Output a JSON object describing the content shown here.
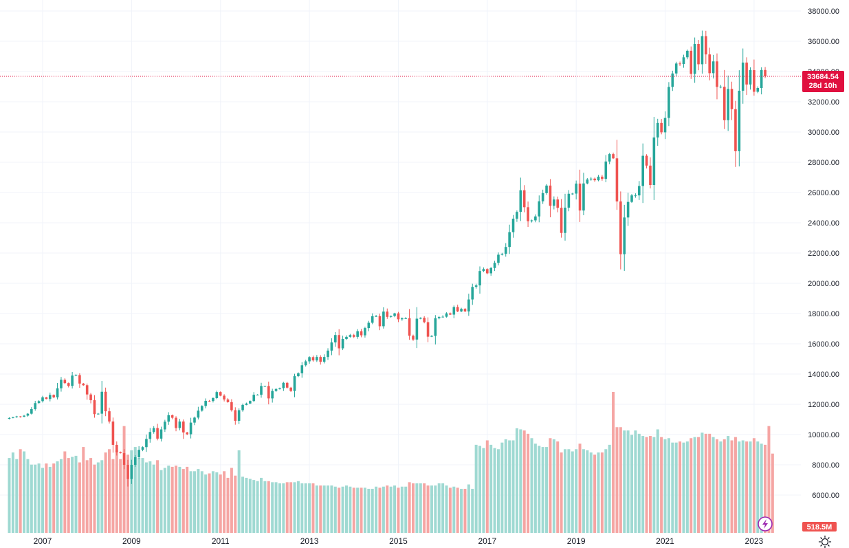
{
  "chart_data": {
    "type": "candlestick",
    "interval": "monthly",
    "ylim": [
      4000,
      38500
    ],
    "y_ticks": [
      {
        "value": 6000,
        "label": "6000.00"
      },
      {
        "value": 8000,
        "label": "8000.00"
      },
      {
        "value": 10000,
        "label": "10000.00"
      },
      {
        "value": 12000,
        "label": "12000.00"
      },
      {
        "value": 14000,
        "label": "14000.00"
      },
      {
        "value": 16000,
        "label": "16000.00"
      },
      {
        "value": 18000,
        "label": "18000.00"
      },
      {
        "value": 20000,
        "label": "20000.00"
      },
      {
        "value": 22000,
        "label": "22000.00"
      },
      {
        "value": 24000,
        "label": "24000.00"
      },
      {
        "value": 26000,
        "label": "26000.00"
      },
      {
        "value": 28000,
        "label": "28000.00"
      },
      {
        "value": 30000,
        "label": "30000.00"
      },
      {
        "value": 32000,
        "label": "32000.00"
      },
      {
        "value": 34000,
        "label": "34000.00"
      },
      {
        "value": 36000,
        "label": "36000.00"
      },
      {
        "value": 38000,
        "label": "38000.00"
      }
    ],
    "x_ticks": [
      {
        "label": "2007",
        "year": 2007
      },
      {
        "label": "2009",
        "year": 2009
      },
      {
        "label": "2011",
        "year": 2011
      },
      {
        "label": "2013",
        "year": 2013
      },
      {
        "label": "2015",
        "year": 2015
      },
      {
        "label": "2017",
        "year": 2017
      },
      {
        "label": "2019",
        "year": 2019
      },
      {
        "label": "2021",
        "year": 2021
      },
      {
        "label": "2023",
        "year": 2023
      }
    ],
    "start": {
      "year": 2006,
      "month": 4
    },
    "closes": [
      11100,
      11150,
      11200,
      11180,
      11250,
      11380,
      11680,
      12080,
      12210,
      12460,
      12350,
      12620,
      12460,
      13060,
      13620,
      13400,
      13220,
      13900,
      13930,
      13370,
      13260,
      12650,
      12270,
      11350,
      11380,
      12830,
      11540,
      10860,
      9320,
      8830,
      8770,
      8000,
      7060,
      8000,
      8500,
      8990,
      9170,
      9710,
      10170,
      10430,
      9730,
      10340,
      10850,
      11280,
      11110,
      10430,
      10860,
      10140,
      10020,
      10790,
      11120,
      11580,
      11890,
      12230,
      12220,
      12410,
      12810,
      12570,
      12320,
      12140,
      11610,
      10910,
      11610,
      11960,
      12050,
      12220,
      12630,
      12630,
      13210,
      13210,
      12390,
      12880,
      13010,
      13070,
      13420,
      13100,
      12880,
      13860,
      14050,
      14580,
      14840,
      15120,
      14900,
      15130,
      14810,
      15130,
      15550,
      16090,
      16580,
      15700,
      16320,
      16460,
      16580,
      16460,
      16830,
      16560,
      17040,
      17390,
      17820,
      17830,
      17160,
      18130,
      17780,
      17840,
      18010,
      17620,
      17690,
      17690,
      16530,
      16280,
      17660,
      17720,
      17430,
      16470,
      16520,
      17690,
      17770,
      17790,
      18010,
      17930,
      18430,
      18140,
      18310,
      18140,
      18930,
      19760,
      19860,
      20810,
      20940,
      20660,
      21010,
      21350,
      21890,
      21950,
      22400,
      23380,
      24270,
      24720,
      26150,
      25030,
      24100,
      24160,
      24420,
      25420,
      25960,
      26460,
      25120,
      25540,
      24990,
      23330,
      25000,
      25920,
      25930,
      26590,
      24810,
      26600,
      26860,
      26920,
      26810,
      27050,
      26900,
      28050,
      28540,
      28260,
      25410,
      21920,
      24350,
      25380,
      25810,
      25810,
      26430,
      28430,
      27780,
      26500,
      29640,
      30600,
      29980,
      30930,
      32980,
      33870,
      34530,
      34500,
      34940,
      35370,
      33840,
      35820,
      34480,
      36340,
      35130,
      33890,
      34670,
      32980,
      32990,
      30780,
      32850,
      31510,
      28730,
      32730,
      34590,
      33140,
      34090,
      32660,
      32910,
      34100,
      33685
    ],
    "volume_max": 12800,
    "volumes": [
      6800,
      7300,
      6700,
      7600,
      7400,
      6700,
      6200,
      6200,
      6300,
      5900,
      6300,
      6000,
      6300,
      6500,
      6700,
      7400,
      6800,
      6900,
      7000,
      6400,
      7800,
      6600,
      6800,
      6200,
      6400,
      6600,
      7300,
      7600,
      6700,
      7500,
      6700,
      9700,
      7100,
      7500,
      7800,
      6800,
      6800,
      6400,
      6500,
      6200,
      6600,
      5700,
      5900,
      6100,
      6000,
      6100,
      6000,
      5800,
      6000,
      5600,
      5600,
      5800,
      5600,
      5300,
      5400,
      5600,
      5500,
      5300,
      5600,
      5000,
      5900,
      5200,
      7500,
      5100,
      5000,
      4900,
      4800,
      4700,
      5000,
      4700,
      4700,
      4600,
      4600,
      4500,
      4500,
      4600,
      4600,
      4600,
      4700,
      4500,
      4500,
      4500,
      4500,
      4300,
      4300,
      4300,
      4300,
      4300,
      4200,
      4100,
      4200,
      4300,
      4200,
      4100,
      4100,
      4100,
      4100,
      4000,
      4000,
      4200,
      4100,
      4200,
      4300,
      4200,
      4300,
      4100,
      4200,
      4200,
      4600,
      4500,
      4500,
      4500,
      4500,
      4300,
      4300,
      4300,
      4500,
      4500,
      4300,
      4100,
      4200,
      4100,
      4000,
      4000,
      4400,
      4000,
      8000,
      7900,
      7700,
      8400,
      8000,
      7700,
      7600,
      8200,
      8500,
      8400,
      8400,
      9500,
      9400,
      9300,
      9000,
      8600,
      8100,
      7900,
      7800,
      7800,
      8600,
      8500,
      8300,
      7300,
      7600,
      7600,
      7400,
      7600,
      8100,
      7600,
      7500,
      7300,
      7100,
      7300,
      7300,
      7600,
      8000,
      12800,
      9600,
      9600,
      9300,
      9300,
      8900,
      9300,
      9000,
      8800,
      8700,
      8800,
      8700,
      9400,
      8700,
      8500,
      8600,
      8200,
      8200,
      8300,
      8200,
      8300,
      8600,
      8700,
      8700,
      9100,
      9000,
      9000,
      8700,
      8500,
      8300,
      8500,
      8800,
      8400,
      8700,
      8300,
      8400,
      8300,
      8300,
      8600,
      8300,
      8100,
      8000,
      9700,
      7200
    ],
    "last_price": "33684.54",
    "countdown": "28d 10h",
    "last_volume": "518.5M",
    "bullish_color": "#26a69a",
    "bearish_color": "#ef5350",
    "bullish_volume_color": "#9fd9d2",
    "bearish_volume_color": "#f5a5a3",
    "price_line_color": "#e0103f"
  }
}
